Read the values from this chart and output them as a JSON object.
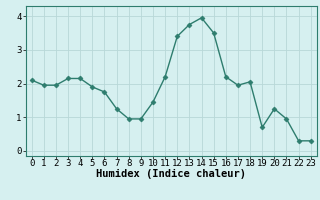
{
  "x": [
    0,
    1,
    2,
    3,
    4,
    5,
    6,
    7,
    8,
    9,
    10,
    11,
    12,
    13,
    14,
    15,
    16,
    17,
    18,
    19,
    20,
    21,
    22,
    23
  ],
  "y": [
    2.1,
    1.95,
    1.95,
    2.15,
    2.15,
    1.9,
    1.75,
    1.25,
    0.95,
    0.95,
    1.45,
    2.2,
    3.4,
    3.75,
    3.95,
    3.5,
    2.2,
    1.95,
    2.05,
    0.7,
    1.25,
    0.95,
    0.3,
    0.3
  ],
  "line_color": "#2e7d6e",
  "marker": "D",
  "marker_size": 2.5,
  "bg_color": "#d6f0f0",
  "grid_color": "#b8d8d8",
  "xlabel": "Humidex (Indice chaleur)",
  "xlabel_fontsize": 7.5,
  "ylim": [
    -0.15,
    4.3
  ],
  "xlim": [
    -0.5,
    23.5
  ],
  "yticks": [
    0,
    1,
    2,
    3,
    4
  ],
  "xticks": [
    0,
    1,
    2,
    3,
    4,
    5,
    6,
    7,
    8,
    9,
    10,
    11,
    12,
    13,
    14,
    15,
    16,
    17,
    18,
    19,
    20,
    21,
    22,
    23
  ],
  "tick_fontsize": 6.5,
  "line_width": 1.0
}
